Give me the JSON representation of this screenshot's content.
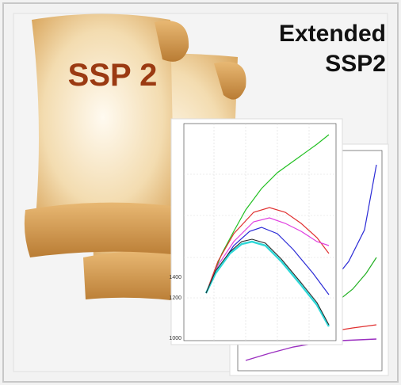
{
  "scroll_label": "SSP 2",
  "title_lines": [
    "Extended",
    "SSP2"
  ],
  "chart_tick_labels": [
    "1400",
    "1200",
    "1000"
  ]
}
